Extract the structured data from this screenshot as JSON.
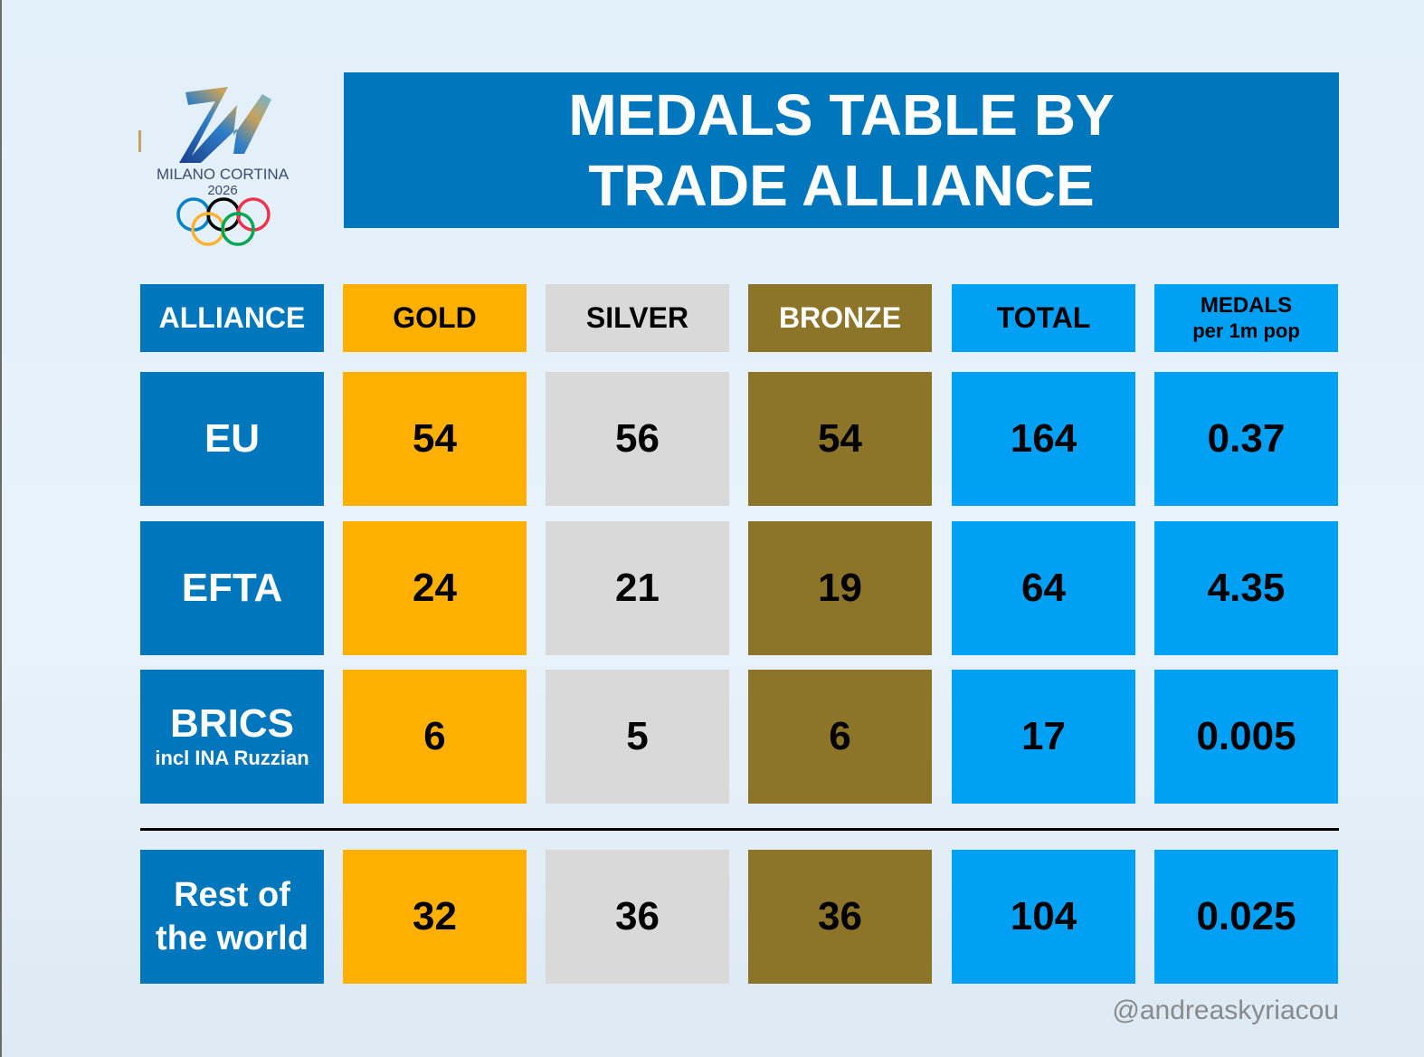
{
  "logo": {
    "brand_line1": "MILANO CORTINA",
    "brand_line2": "2026",
    "icon": "olympic-rings-icon"
  },
  "title": {
    "line1": "MEDALS TABLE BY",
    "line2": "TRADE ALLIANCE"
  },
  "headers": {
    "alliance": "ALLIANCE",
    "gold": "GOLD",
    "silver": "SILVER",
    "bronze": "BRONZE",
    "total": "TOTAL",
    "per_pop_line1": "MEDALS",
    "per_pop_line2": "per 1m pop"
  },
  "rows": [
    {
      "alliance": "EU",
      "note": "",
      "gold": "54",
      "silver": "56",
      "bronze": "54",
      "total": "164",
      "per_pop": "0.37"
    },
    {
      "alliance": "EFTA",
      "note": "",
      "gold": "24",
      "silver": "21",
      "bronze": "19",
      "total": "64",
      "per_pop": "4.35"
    },
    {
      "alliance": "BRICS",
      "note": "incl INA Ruzzian",
      "gold": "6",
      "silver": "5",
      "bronze": "6",
      "total": "17",
      "per_pop": "0.005"
    }
  ],
  "rest": {
    "alliance_line1": "Rest of",
    "alliance_line2": "the world",
    "gold": "32",
    "silver": "36",
    "bronze": "36",
    "total": "104",
    "per_pop": "0.025"
  },
  "credit": "@andreaskyriacou",
  "colors": {
    "title_blue": "#0077bd",
    "gold": "#ffb000",
    "silver": "#d9d9d9",
    "bronze": "#8c7428",
    "total_blue": "#00a0f5"
  },
  "chart_data": {
    "type": "table",
    "title": "MEDALS TABLE BY TRADE ALLIANCE",
    "columns": [
      "ALLIANCE",
      "GOLD",
      "SILVER",
      "BRONZE",
      "TOTAL",
      "MEDALS per 1m pop"
    ],
    "rows": [
      [
        "EU",
        54,
        56,
        54,
        164,
        0.37
      ],
      [
        "EFTA",
        24,
        21,
        19,
        64,
        4.35
      ],
      [
        "BRICS incl INA Ruzzian",
        6,
        5,
        6,
        17,
        0.005
      ],
      [
        "Rest of the world",
        32,
        36,
        36,
        104,
        0.025
      ]
    ]
  }
}
